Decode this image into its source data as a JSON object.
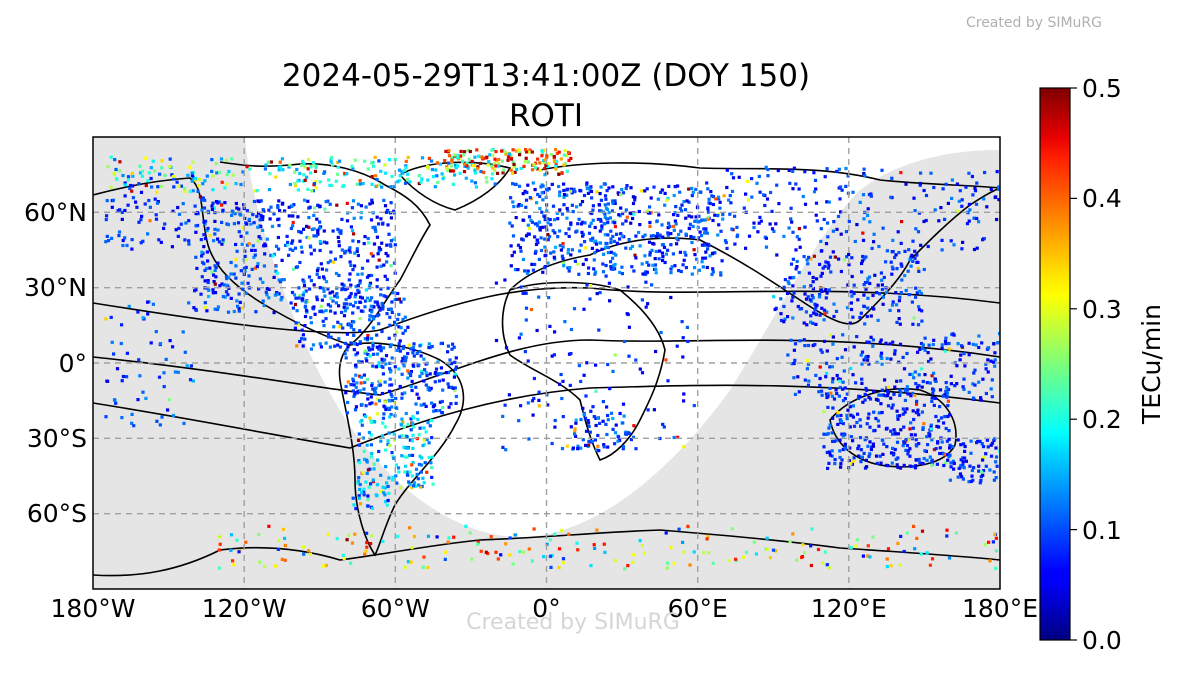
{
  "watermark_top": "Created by SIMuRG",
  "watermark_bottom": "Created by SIMuRG",
  "title_line1": "2024-05-29T13:41:00Z (DOY 150)",
  "title_line2": "ROTI",
  "colorbar": {
    "label": "TECu/min",
    "min": 0.0,
    "max": 0.5,
    "ticks": [
      "0.0",
      "0.1",
      "0.2",
      "0.3",
      "0.4",
      "0.5"
    ],
    "colormap": "jet"
  },
  "chart_data": {
    "type": "scatter",
    "projection": "plate-carree",
    "xlim": [
      -180,
      180
    ],
    "ylim": [
      -90,
      90
    ],
    "x_ticks": [
      {
        "value": -180,
        "label": "180°W"
      },
      {
        "value": -120,
        "label": "120°W"
      },
      {
        "value": -60,
        "label": "60°W"
      },
      {
        "value": 0,
        "label": "0°"
      },
      {
        "value": 60,
        "label": "60°E"
      },
      {
        "value": 120,
        "label": "120°E"
      },
      {
        "value": 180,
        "label": "180°E"
      }
    ],
    "y_ticks": [
      {
        "value": 60,
        "label": "60°N"
      },
      {
        "value": 30,
        "label": "30°N"
      },
      {
        "value": 0,
        "label": "0°"
      },
      {
        "value": -30,
        "label": "30°S"
      },
      {
        "value": -60,
        "label": "60°S"
      }
    ],
    "grid": true,
    "night_shading_color": "#e5e5e5",
    "coverage_regions": [
      {
        "lon": [
          -175,
          -135
        ],
        "lat": [
          45,
          75
        ],
        "count": 90,
        "roti": [
          0.05,
          0.12
        ],
        "hi_frac": 0.05
      },
      {
        "lon": [
          -175,
          -90
        ],
        "lat": [
          68,
          82
        ],
        "count": 120,
        "roti": [
          0.1,
          0.3
        ],
        "hi_frac": 0.35
      },
      {
        "lon": [
          -140,
          -60
        ],
        "lat": [
          20,
          65
        ],
        "count": 520,
        "roti": [
          0.04,
          0.14
        ],
        "hi_frac": 0.08
      },
      {
        "lon": [
          -100,
          -55
        ],
        "lat": [
          5,
          30
        ],
        "count": 160,
        "roti": [
          0.05,
          0.13
        ],
        "hi_frac": 0.05
      },
      {
        "lon": [
          -80,
          -35
        ],
        "lat": [
          -20,
          8
        ],
        "count": 260,
        "roti": [
          0.05,
          0.14
        ],
        "hi_frac": 0.08
      },
      {
        "lon": [
          -75,
          -45
        ],
        "lat": [
          -50,
          -20
        ],
        "count": 160,
        "roti": [
          0.08,
          0.22
        ],
        "hi_frac": 0.2
      },
      {
        "lon": [
          -78,
          -62
        ],
        "lat": [
          -58,
          -48
        ],
        "count": 30,
        "roti": [
          0.05,
          0.2
        ],
        "hi_frac": 0.1
      },
      {
        "lon": [
          -100,
          -20
        ],
        "lat": [
          70,
          82
        ],
        "count": 120,
        "roti": [
          0.1,
          0.25
        ],
        "hi_frac": 0.25
      },
      {
        "lon": [
          -40,
          10
        ],
        "lat": [
          75,
          85
        ],
        "count": 160,
        "roti": [
          0.4,
          0.5
        ],
        "hi_frac": 0.9
      },
      {
        "lon": [
          -15,
          70
        ],
        "lat": [
          35,
          72
        ],
        "count": 560,
        "roti": [
          0.04,
          0.14
        ],
        "hi_frac": 0.06
      },
      {
        "lon": [
          -20,
          60
        ],
        "lat": [
          -35,
          35
        ],
        "count": 130,
        "roti": [
          0.04,
          0.12
        ],
        "hi_frac": 0.04
      },
      {
        "lon": [
          10,
          35
        ],
        "lat": [
          -35,
          -20
        ],
        "count": 60,
        "roti": [
          0.05,
          0.15
        ],
        "hi_frac": 0.08
      },
      {
        "lon": [
          70,
          180
        ],
        "lat": [
          45,
          78
        ],
        "count": 220,
        "roti": [
          0.04,
          0.13
        ],
        "hi_frac": 0.06
      },
      {
        "lon": [
          90,
          150
        ],
        "lat": [
          15,
          45
        ],
        "count": 220,
        "roti": [
          0.04,
          0.13
        ],
        "hi_frac": 0.06
      },
      {
        "lon": [
          95,
          180
        ],
        "lat": [
          -15,
          12
        ],
        "count": 220,
        "roti": [
          0.04,
          0.13
        ],
        "hi_frac": 0.05
      },
      {
        "lon": [
          110,
          160
        ],
        "lat": [
          -42,
          -10
        ],
        "count": 300,
        "roti": [
          0.04,
          0.12
        ],
        "hi_frac": 0.04
      },
      {
        "lon": [
          160,
          180
        ],
        "lat": [
          -48,
          -30
        ],
        "count": 70,
        "roti": [
          0.04,
          0.12
        ],
        "hi_frac": 0.04
      },
      {
        "lon": [
          -175,
          -140
        ],
        "lat": [
          -25,
          25
        ],
        "count": 60,
        "roti": [
          0.05,
          0.15
        ],
        "hi_frac": 0.05
      },
      {
        "lon": [
          -130,
          180
        ],
        "lat": [
          -82,
          -65
        ],
        "count": 200,
        "roti": [
          0.05,
          0.45
        ],
        "hi_frac": 0.25
      }
    ]
  }
}
